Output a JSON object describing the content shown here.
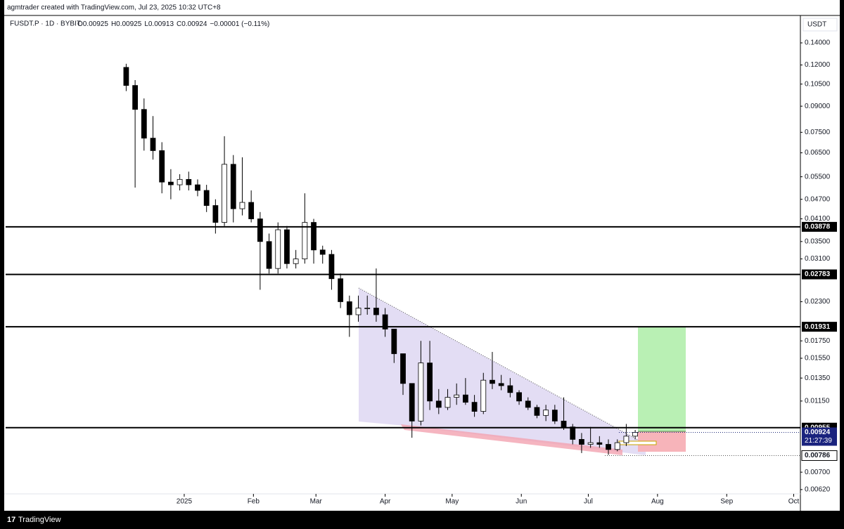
{
  "header": {
    "credit": "agmtrader created with TradingView.com, Jul 23, 2025 10:32 UTC+8",
    "symbol": "FUSDT.P · 1D · BYBIT",
    "ohlc": [
      "O0.00925",
      "H0.00925",
      "L0.00913",
      "C0.00924",
      "−0.00001 (−0.11%)"
    ]
  },
  "footer": "TradingView",
  "chart_data": {
    "type": "candlestick",
    "y_unit": "USDT",
    "yscale": "log",
    "grid": false,
    "up_color": "#ffffff",
    "down_color": "#000000",
    "ylim": [
      0.00559,
      0.1646
    ],
    "yticks": [
      {
        "value": 0.14,
        "label": "0.14000"
      },
      {
        "value": 0.12,
        "label": "0.12000"
      },
      {
        "value": 0.105,
        "label": "0.10500"
      },
      {
        "value": 0.09,
        "label": "0.09000"
      },
      {
        "value": 0.075,
        "label": "0.07500"
      },
      {
        "value": 0.065,
        "label": "0.06500"
      },
      {
        "value": 0.055,
        "label": "0.05500"
      },
      {
        "value": 0.047,
        "label": "0.04700"
      },
      {
        "value": 0.041,
        "label": "0.04100"
      },
      {
        "value": 0.035,
        "label": "0.03500"
      },
      {
        "value": 0.031,
        "label": "0.03100"
      },
      {
        "value": 0.023,
        "label": "0.02300"
      },
      {
        "value": 0.0175,
        "label": "0.01750"
      },
      {
        "value": 0.0155,
        "label": "0.01550"
      },
      {
        "value": 0.0135,
        "label": "0.01350"
      },
      {
        "value": 0.0115,
        "label": "0.01150"
      },
      {
        "value": 0.007,
        "label": "0.00700"
      },
      {
        "value": 0.0062,
        "label": "0.00620"
      }
    ],
    "xlim": [
      -80,
      276
    ],
    "xticks": [
      {
        "value": 0,
        "label": "2025"
      },
      {
        "value": 31,
        "label": "Feb"
      },
      {
        "value": 59,
        "label": "Mar"
      },
      {
        "value": 90,
        "label": "Apr"
      },
      {
        "value": 120,
        "label": "May"
      },
      {
        "value": 151,
        "label": "Jun"
      },
      {
        "value": 181,
        "label": "Jul"
      },
      {
        "value": 212,
        "label": "Aug"
      },
      {
        "value": 243,
        "label": "Sep"
      },
      {
        "value": 273,
        "label": "Oct"
      }
    ],
    "x": [
      -26,
      -22,
      -18,
      -14,
      -10,
      -6,
      -2,
      2,
      6,
      10,
      14,
      18,
      22,
      26,
      30,
      34,
      38,
      42,
      46,
      50,
      54,
      58,
      62,
      66,
      70,
      74,
      78,
      82,
      86,
      90,
      94,
      98,
      102,
      106,
      110,
      114,
      118,
      122,
      126,
      130,
      134,
      138,
      142,
      146,
      150,
      154,
      158,
      162,
      166,
      170,
      174,
      178,
      182,
      186,
      190,
      194,
      198,
      202
    ],
    "open": [
      0.118,
      0.104,
      0.088,
      0.072,
      0.066,
      0.053,
      0.052,
      0.054,
      0.052,
      0.05,
      0.045,
      0.04,
      0.06,
      0.044,
      0.046,
      0.041,
      0.035,
      0.029,
      0.038,
      0.03,
      0.031,
      0.04,
      0.033,
      0.032,
      0.027,
      0.023,
      0.021,
      0.022,
      0.022,
      0.021,
      0.019,
      0.016,
      0.013,
      0.01,
      0.015,
      0.0115,
      0.011,
      0.0118,
      0.012,
      0.0114,
      0.0107,
      0.0133,
      0.013,
      0.0128,
      0.0122,
      0.0115,
      0.011,
      0.0104,
      0.0108,
      0.01,
      0.0096,
      0.0088,
      0.0085,
      0.0086,
      0.0085,
      0.0082,
      0.0086,
      0.009
    ],
    "high": [
      0.121,
      0.108,
      0.095,
      0.084,
      0.07,
      0.058,
      0.056,
      0.057,
      0.054,
      0.052,
      0.047,
      0.073,
      0.064,
      0.063,
      0.05,
      0.043,
      0.037,
      0.04,
      0.039,
      0.033,
      0.049,
      0.041,
      0.034,
      0.033,
      0.028,
      0.024,
      0.024,
      0.024,
      0.029,
      0.022,
      0.019,
      0.016,
      0.013,
      0.0175,
      0.0175,
      0.0125,
      0.0125,
      0.013,
      0.0135,
      0.012,
      0.014,
      0.0162,
      0.0138,
      0.0135,
      0.0124,
      0.0118,
      0.0112,
      0.0112,
      0.0112,
      0.0118,
      0.0098,
      0.0092,
      0.0096,
      0.009,
      0.0088,
      0.0088,
      0.0098,
      0.0094
    ],
    "low": [
      0.1,
      0.051,
      0.066,
      0.062,
      0.049,
      0.047,
      0.05,
      0.05,
      0.048,
      0.043,
      0.037,
      0.039,
      0.04,
      0.042,
      0.04,
      0.025,
      0.028,
      0.028,
      0.029,
      0.029,
      0.03,
      0.03,
      0.03,
      0.025,
      0.022,
      0.018,
      0.02,
      0.021,
      0.02,
      0.018,
      0.015,
      0.012,
      0.0089,
      0.0097,
      0.0108,
      0.0105,
      0.0108,
      0.0112,
      0.0112,
      0.0103,
      0.0105,
      0.0125,
      0.0124,
      0.0118,
      0.0112,
      0.0108,
      0.0102,
      0.01,
      0.0098,
      0.0094,
      0.0085,
      0.008,
      0.0083,
      0.0083,
      0.0079,
      0.0081,
      0.0084,
      0.0088
    ],
    "close": [
      0.104,
      0.088,
      0.072,
      0.066,
      0.053,
      0.052,
      0.054,
      0.052,
      0.05,
      0.045,
      0.04,
      0.06,
      0.044,
      0.046,
      0.041,
      0.035,
      0.029,
      0.038,
      0.03,
      0.031,
      0.04,
      0.033,
      0.032,
      0.027,
      0.023,
      0.021,
      0.022,
      0.022,
      0.021,
      0.019,
      0.016,
      0.013,
      0.01,
      0.015,
      0.0115,
      0.011,
      0.0118,
      0.012,
      0.0114,
      0.0107,
      0.0133,
      0.013,
      0.0128,
      0.0122,
      0.0115,
      0.011,
      0.0104,
      0.0108,
      0.01,
      0.0096,
      0.0088,
      0.0085,
      0.0086,
      0.0085,
      0.0082,
      0.0086,
      0.009,
      0.00924
    ],
    "levels": [
      0.03878,
      0.02783,
      0.01931,
      0.00955
    ],
    "last_price": 0.00924,
    "countdown": "21:27:39",
    "low_mark": 0.00786
  }
}
